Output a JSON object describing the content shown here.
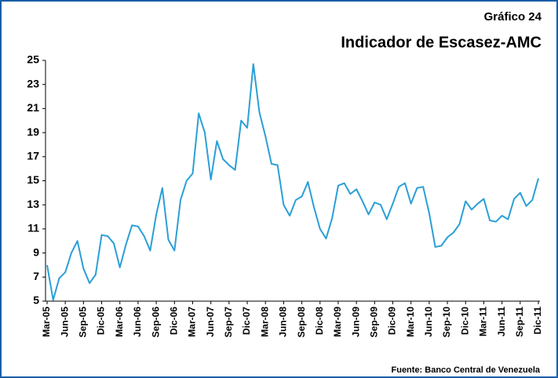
{
  "chart_data": {
    "type": "line",
    "title": "Indicador de Escasez-AMC",
    "subtitle": "Gráfico 24",
    "source": "Fuente: Banco Central de Venezuela",
    "categories": [
      "Mar-05",
      null,
      null,
      "Jun-05",
      null,
      null,
      "Sep-05",
      null,
      null,
      "Dic-05",
      null,
      null,
      "Mar-06",
      null,
      null,
      "Jun-06",
      null,
      null,
      "Sep-06",
      null,
      null,
      "Dic-06",
      null,
      null,
      "Mar-07",
      null,
      null,
      "Jun-07",
      null,
      null,
      "Sep-07",
      null,
      null,
      "Dic-07",
      null,
      null,
      "Mar-08",
      null,
      null,
      "Jun-08",
      null,
      null,
      "Sep-08",
      null,
      null,
      "Dic-08",
      null,
      null,
      "Mar-09",
      null,
      null,
      "Jun-09",
      null,
      null,
      "Sep-09",
      null,
      null,
      "Dic-09",
      null,
      null,
      "Mar-10",
      null,
      null,
      "Jun-10",
      null,
      null,
      "Sep-10",
      null,
      null,
      "Dic-10",
      null,
      null,
      "Mar-11",
      null,
      null,
      "Jun-11",
      null,
      null,
      "Sep-11",
      null,
      null,
      "Dic-11"
    ],
    "values": [
      8.0,
      5.1,
      6.9,
      7.4,
      9.0,
      10.0,
      7.7,
      6.5,
      7.2,
      10.5,
      10.4,
      9.8,
      7.8,
      9.7,
      11.3,
      11.2,
      10.4,
      9.2,
      12.2,
      14.4,
      10.1,
      9.2,
      13.4,
      15.0,
      15.6,
      20.6,
      19.0,
      15.1,
      18.3,
      16.8,
      16.3,
      15.9,
      20.0,
      19.4,
      24.7,
      20.7,
      18.7,
      16.4,
      16.3,
      13.0,
      12.1,
      13.4,
      13.7,
      14.9,
      12.8,
      11.0,
      10.2,
      11.9,
      14.6,
      14.8,
      13.9,
      14.3,
      13.3,
      12.2,
      13.2,
      13.0,
      11.8,
      13.1,
      14.5,
      14.8,
      13.1,
      14.4,
      14.5,
      12.3,
      9.5,
      9.6,
      10.3,
      10.7,
      11.4,
      13.3,
      12.6,
      13.1,
      13.5,
      11.7,
      11.6,
      12.1,
      11.8,
      13.5,
      14.0,
      12.9,
      13.4,
      15.2
    ],
    "color": "#2a9fd6",
    "ylim": [
      5,
      25
    ],
    "yticks": [
      5,
      7,
      9,
      11,
      13,
      15,
      17,
      19,
      21,
      23,
      25
    ]
  }
}
